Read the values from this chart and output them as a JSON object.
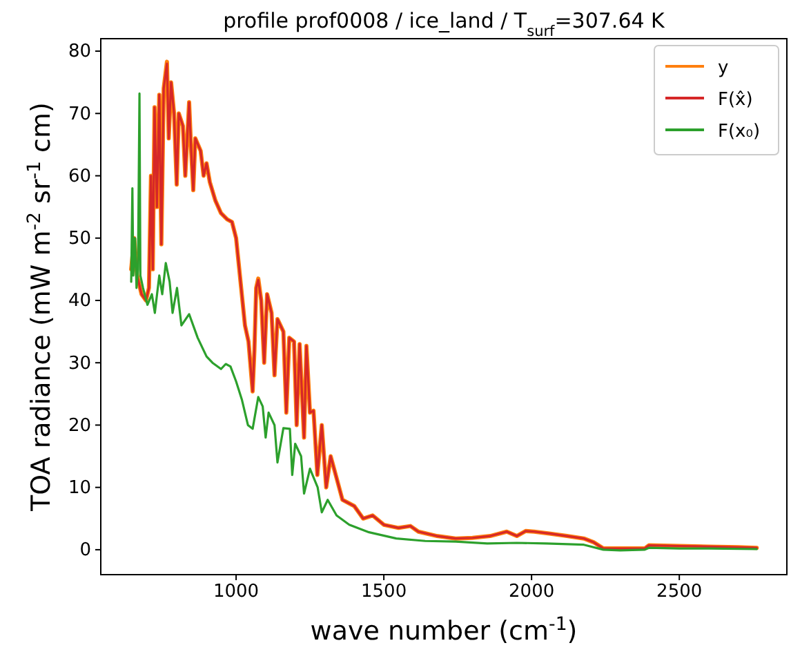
{
  "chart_data": {
    "type": "line",
    "title": "profile prof0008 / ice_land / T$_{surf}$=307.64 K",
    "xlabel": "wave number (cm$^{-1}$)",
    "ylabel": "TOA radiance (mW m$^{-2}$ sr$^{-1}$ cm)",
    "xlim": [
      542,
      2864
    ],
    "ylim": [
      -4,
      82
    ],
    "xticks": [
      1000,
      1500,
      2000,
      2500
    ],
    "yticks": [
      0,
      10,
      20,
      30,
      40,
      50,
      60,
      70,
      80
    ],
    "grid": false,
    "legend": "top right",
    "marker": "none",
    "line_style": "solid",
    "series": [
      {
        "name": "y",
        "color": "#ff7f0e",
        "x": [
          645,
          655,
          665,
          680,
          695,
          705,
          712,
          718,
          724,
          732,
          740,
          747,
          755,
          766,
          772,
          780,
          790,
          799,
          806,
          820,
          828,
          841,
          848,
          855,
          862,
          880,
          890,
          900,
          911,
          930,
          949,
          970,
          986,
          1000,
          1015,
          1030,
          1042,
          1056,
          1062,
          1068,
          1075,
          1085,
          1095,
          1105,
          1120,
          1130,
          1140,
          1160,
          1170,
          1180,
          1196,
          1205,
          1215,
          1230,
          1238,
          1250,
          1262,
          1275,
          1290,
          1305,
          1320,
          1336,
          1360,
          1400,
          1430,
          1462,
          1500,
          1550,
          1590,
          1617,
          1680,
          1743,
          1800,
          1860,
          1916,
          1950,
          1980,
          2009,
          2060,
          2120,
          2177,
          2210,
          2243,
          2300,
          2383,
          2397,
          2500,
          2600,
          2700,
          2762
        ],
        "values": [
          45,
          50,
          44,
          41,
          40,
          42,
          60,
          45,
          71,
          55,
          73,
          49,
          74,
          78.3,
          66,
          75,
          70,
          58.6,
          70,
          68,
          60,
          71.8,
          64,
          57.7,
          66,
          64,
          60,
          62,
          59,
          56,
          54,
          53,
          52.6,
          50,
          43,
          36,
          33.4,
          25.4,
          32,
          42,
          43.5,
          40,
          30,
          41,
          38,
          28,
          37,
          35,
          22,
          34,
          33.4,
          20,
          33,
          18,
          32.7,
          22,
          22.3,
          12,
          20,
          10,
          15,
          12.2,
          8,
          7,
          5,
          5.5,
          4,
          3.5,
          3.8,
          2.9,
          2.2,
          1.8,
          1.9,
          2.2,
          2.9,
          2.2,
          3,
          2.9,
          2.6,
          2.2,
          1.8,
          1.2,
          0.2,
          0.2,
          0.2,
          0.7,
          0.6,
          0.5,
          0.4,
          0.3
        ]
      },
      {
        "name": "F(x̂)",
        "color": "#d62728",
        "x": [
          645,
          655,
          665,
          680,
          695,
          705,
          712,
          718,
          724,
          732,
          740,
          747,
          755,
          766,
          772,
          780,
          790,
          799,
          806,
          820,
          828,
          841,
          848,
          855,
          862,
          880,
          890,
          900,
          911,
          930,
          949,
          970,
          986,
          1000,
          1015,
          1030,
          1042,
          1056,
          1062,
          1068,
          1075,
          1085,
          1095,
          1105,
          1120,
          1130,
          1140,
          1160,
          1170,
          1180,
          1196,
          1205,
          1215,
          1230,
          1238,
          1250,
          1262,
          1275,
          1290,
          1305,
          1320,
          1336,
          1360,
          1400,
          1430,
          1462,
          1500,
          1550,
          1590,
          1617,
          1680,
          1743,
          1800,
          1860,
          1916,
          1950,
          1980,
          2009,
          2060,
          2120,
          2177,
          2210,
          2243,
          2300,
          2383,
          2397,
          2500,
          2600,
          2700,
          2762
        ],
        "values": [
          45,
          50,
          44,
          41,
          40,
          42,
          60,
          45,
          71,
          55,
          73,
          49,
          74,
          78,
          66,
          75,
          70,
          58.6,
          70,
          68,
          60,
          71.8,
          64,
          57.7,
          66,
          64,
          60,
          62,
          59,
          56,
          54,
          53,
          52.6,
          50,
          43,
          36,
          33.4,
          25.4,
          32,
          42,
          43.3,
          40,
          30,
          41,
          38,
          28,
          37,
          35,
          22,
          34,
          33.4,
          20,
          33,
          18,
          32.7,
          22,
          22.3,
          12,
          20,
          10,
          15,
          12.2,
          8,
          7,
          5,
          5.5,
          4,
          3.5,
          3.8,
          2.9,
          2.2,
          1.8,
          1.9,
          2.2,
          2.9,
          2.2,
          3,
          2.9,
          2.6,
          2.2,
          1.8,
          1.2,
          0.2,
          0.2,
          0.2,
          0.7,
          0.6,
          0.5,
          0.4,
          0.3
        ]
      },
      {
        "name": "F(x₀)",
        "color": "#2ca02c",
        "x": [
          645,
          649,
          652,
          658,
          663,
          668,
          673,
          676,
          685,
          700,
          715,
          725,
          740,
          750,
          762,
          775,
          785,
          800,
          815,
          841,
          870,
          900,
          920,
          949,
          965,
          981,
          1000,
          1020,
          1040,
          1056,
          1075,
          1090,
          1100,
          1110,
          1130,
          1140,
          1160,
          1182,
          1190,
          1200,
          1220,
          1230,
          1250,
          1276,
          1290,
          1310,
          1340,
          1383,
          1450,
          1542,
          1640,
          1743,
          1850,
          1950,
          2050,
          2177,
          2243,
          2300,
          2383,
          2397,
          2500,
          2600,
          2762
        ],
        "values": [
          43,
          58,
          44,
          50,
          42,
          45,
          73.2,
          44,
          42,
          39.3,
          41,
          38,
          44,
          41,
          46,
          43,
          38,
          42,
          36,
          37.8,
          34,
          31,
          30,
          29,
          29.8,
          29.4,
          27,
          24,
          20,
          19.4,
          24.5,
          23,
          18,
          22,
          20,
          14,
          19.5,
          19.4,
          12,
          17,
          15,
          9,
          13,
          10,
          6,
          8,
          5.5,
          4,
          2.8,
          1.8,
          1.4,
          1.3,
          1,
          1.1,
          1,
          0.8,
          0,
          -0.1,
          0,
          0.3,
          0.2,
          0.2,
          0.1
        ]
      }
    ]
  }
}
